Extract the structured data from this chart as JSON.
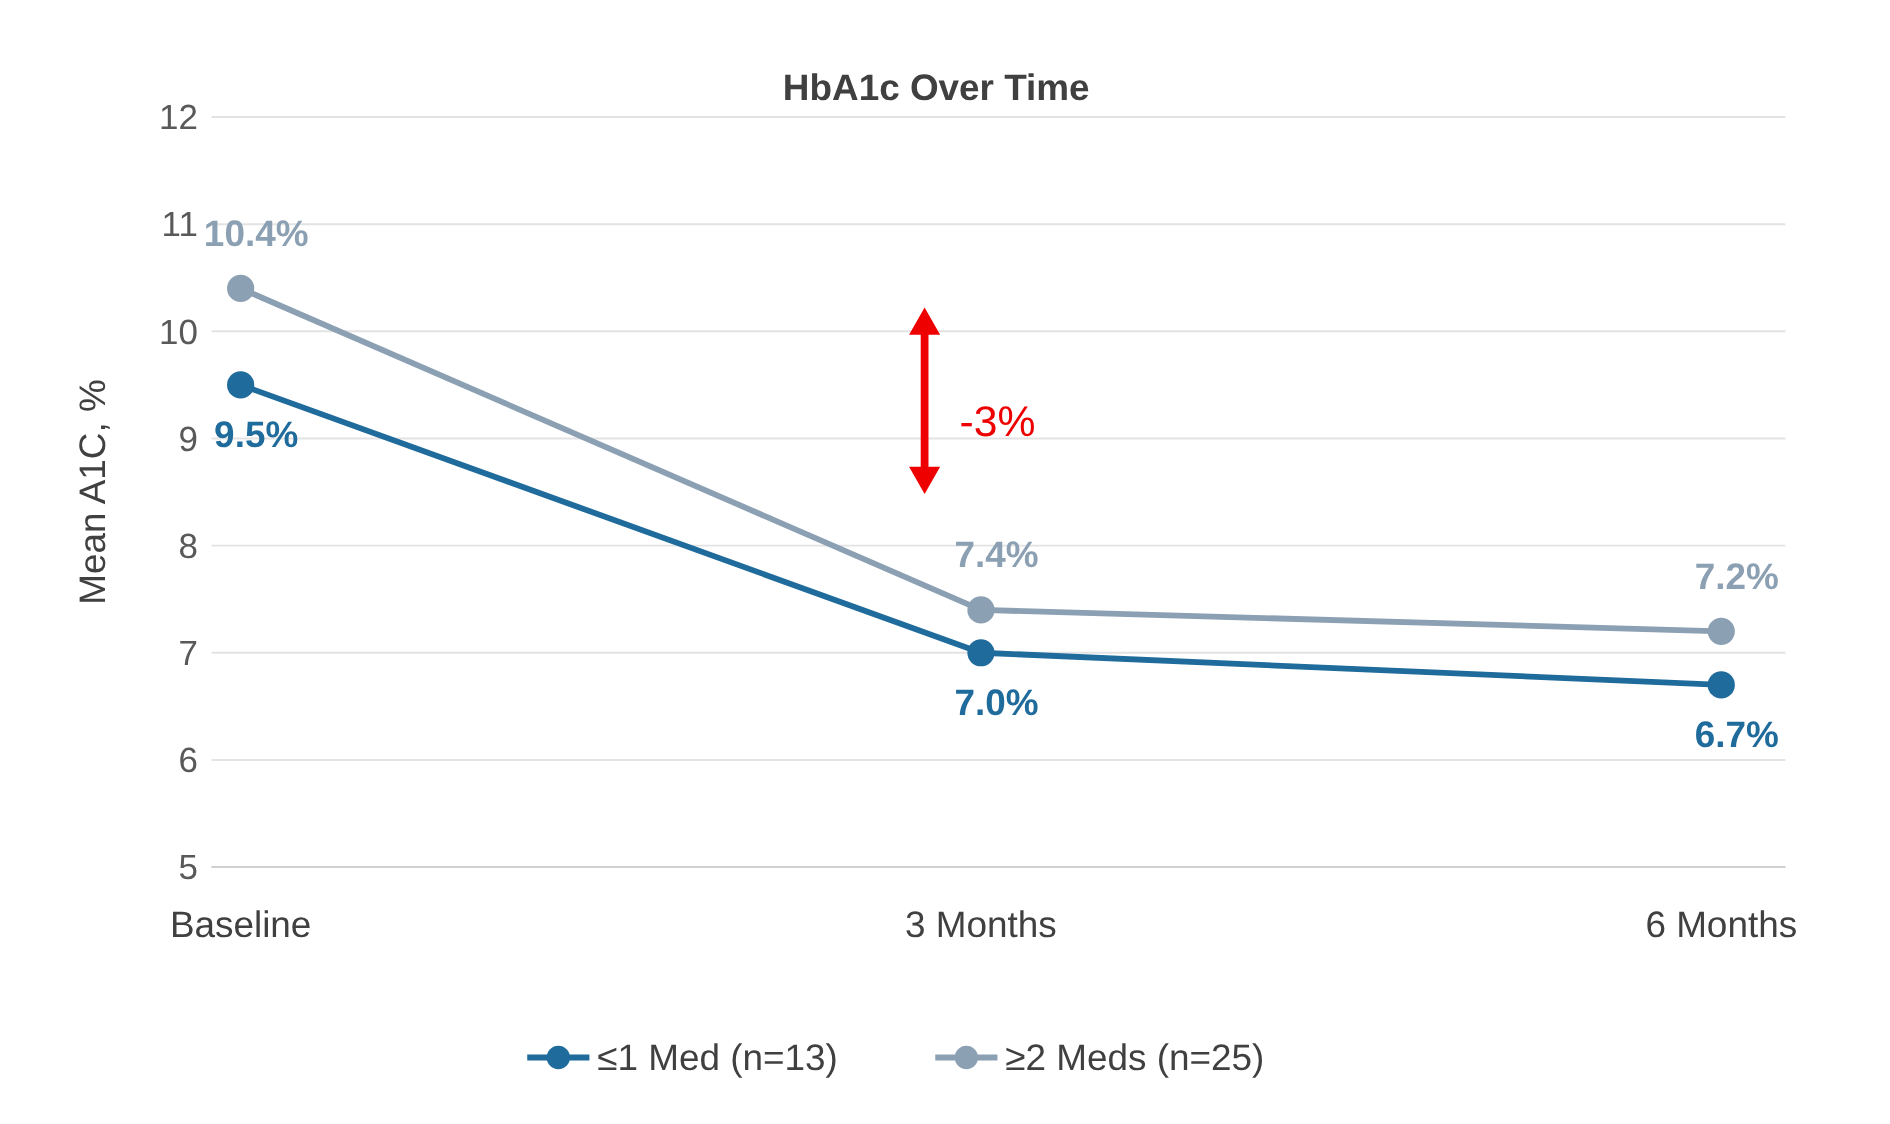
{
  "chart_data": {
    "type": "line",
    "title": "HbA1c Over Time",
    "ylabel": "Mean A1C, %",
    "categories": [
      "Baseline",
      "3 Months",
      "6 Months"
    ],
    "series": [
      {
        "name": "≤1 Med (n=13)",
        "color": "#1f6b9c",
        "values": [
          9.5,
          7.0,
          6.7
        ],
        "value_labels": [
          "9.5%",
          "7.0%",
          "6.7%"
        ]
      },
      {
        "name": "≥2 Meds (n=25)",
        "color": "#8ca0b3",
        "values": [
          10.4,
          7.4,
          7.2
        ],
        "value_labels": [
          "10.4%",
          "7.4%",
          "7.2%"
        ]
      }
    ],
    "ylim": [
      5,
      12
    ],
    "yticks": [
      5,
      6,
      7,
      8,
      9,
      10,
      11,
      12
    ],
    "grid": "y",
    "legend": "bottom",
    "marker": "circle",
    "line_style": "solid",
    "annotations": [
      "-3%"
    ]
  }
}
